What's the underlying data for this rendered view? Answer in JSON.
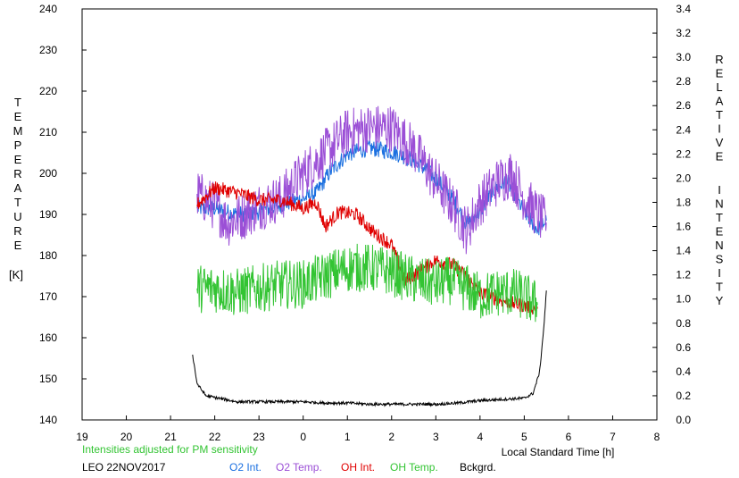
{
  "chart_data": {
    "type": "line",
    "left_axis": {
      "label_letters": [
        "T",
        "E",
        "M",
        "P",
        "E",
        "R",
        "A",
        "T",
        "U",
        "R",
        "E"
      ],
      "unit": "[K]",
      "ylim": [
        140,
        240
      ],
      "ticks": [
        140,
        150,
        160,
        170,
        180,
        190,
        200,
        210,
        220,
        230,
        240
      ],
      "tick_labels": [
        "140",
        "150",
        "160",
        "170",
        "180",
        "190",
        "200",
        "210",
        "220",
        "230",
        "240"
      ]
    },
    "right_axis": {
      "label_letters_1": [
        "R",
        "E",
        "L",
        "A",
        "T",
        "I",
        "V",
        "E"
      ],
      "label_letters_2": [
        "I",
        "N",
        "T",
        "E",
        "N",
        "S",
        "I",
        "T",
        "Y"
      ],
      "ylim": [
        0,
        3.4
      ],
      "ticks": [
        0,
        0.2,
        0.4,
        0.6,
        0.8,
        1.0,
        1.2,
        1.4,
        1.6,
        1.8,
        2.0,
        2.2,
        2.4,
        2.6,
        2.8,
        3.0,
        3.2,
        3.4
      ],
      "tick_labels": [
        "0.0",
        "0.2",
        "0.4",
        "0.6",
        "0.8",
        "1.0",
        "1.2",
        "1.4",
        "1.6",
        "1.8",
        "2.0",
        "2.2",
        "2.4",
        "2.6",
        "2.8",
        "3.0",
        "3.2",
        "3.4"
      ]
    },
    "x_axis": {
      "label": "Local Standard Time [h]",
      "xlim": [
        19,
        32
      ],
      "ticks": [
        19,
        20,
        21,
        22,
        23,
        24,
        25,
        26,
        27,
        28,
        29,
        30,
        31,
        32
      ],
      "tick_labels": [
        "19",
        "20",
        "21",
        "22",
        "23",
        "0",
        "1",
        "2",
        "3",
        "4",
        "5",
        "6",
        "7",
        "8"
      ]
    },
    "note": "Intensities adjusted for PM sensitivity",
    "station_date": "LEO 22NOV2017",
    "series": [
      {
        "name": "O2 Int.",
        "color": "#1a6fe0",
        "axis": "right",
        "noise": 0.07,
        "points": [
          [
            21.6,
            1.75
          ],
          [
            22.0,
            1.75
          ],
          [
            22.5,
            1.7
          ],
          [
            23.0,
            1.72
          ],
          [
            23.5,
            1.78
          ],
          [
            24.0,
            1.83
          ],
          [
            24.3,
            1.88
          ],
          [
            24.6,
            2.05
          ],
          [
            25.0,
            2.2
          ],
          [
            25.5,
            2.25
          ],
          [
            26.0,
            2.22
          ],
          [
            26.5,
            2.15
          ],
          [
            27.0,
            2.0
          ],
          [
            27.4,
            1.82
          ],
          [
            27.7,
            1.62
          ],
          [
            28.0,
            1.72
          ],
          [
            28.3,
            1.9
          ],
          [
            28.6,
            1.98
          ],
          [
            29.0,
            1.72
          ],
          [
            29.3,
            1.58
          ],
          [
            29.5,
            1.65
          ]
        ]
      },
      {
        "name": "O2 Temp.",
        "color": "#9b4fd6",
        "axis": "left",
        "noise": 6,
        "points": [
          [
            21.6,
            195
          ],
          [
            22.0,
            192
          ],
          [
            22.3,
            188
          ],
          [
            22.7,
            190
          ],
          [
            23.0,
            192
          ],
          [
            23.5,
            194
          ],
          [
            24.0,
            200
          ],
          [
            24.5,
            205
          ],
          [
            25.0,
            210
          ],
          [
            25.5,
            211
          ],
          [
            26.0,
            211
          ],
          [
            26.5,
            206
          ],
          [
            27.0,
            198
          ],
          [
            27.4,
            192
          ],
          [
            27.7,
            186
          ],
          [
            28.0,
            193
          ],
          [
            28.4,
            198
          ],
          [
            28.7,
            200
          ],
          [
            29.0,
            194
          ],
          [
            29.3,
            190
          ],
          [
            29.5,
            188
          ]
        ]
      },
      {
        "name": "OH Int.",
        "color": "#e00000",
        "axis": "right",
        "noise": 0.06,
        "points": [
          [
            21.6,
            1.78
          ],
          [
            22.0,
            1.92
          ],
          [
            22.5,
            1.88
          ],
          [
            23.0,
            1.82
          ],
          [
            23.5,
            1.82
          ],
          [
            24.0,
            1.75
          ],
          [
            24.3,
            1.8
          ],
          [
            24.5,
            1.6
          ],
          [
            24.8,
            1.72
          ],
          [
            25.2,
            1.7
          ],
          [
            25.6,
            1.55
          ],
          [
            26.0,
            1.45
          ],
          [
            26.3,
            1.15
          ],
          [
            26.6,
            1.22
          ],
          [
            27.0,
            1.32
          ],
          [
            27.4,
            1.28
          ],
          [
            27.7,
            1.18
          ],
          [
            28.0,
            1.05
          ],
          [
            28.4,
            1.0
          ],
          [
            28.8,
            0.96
          ],
          [
            29.3,
            0.92
          ]
        ]
      },
      {
        "name": "OH Temp.",
        "color": "#33c433",
        "axis": "left",
        "noise": 6,
        "points": [
          [
            21.6,
            172
          ],
          [
            22.0,
            172
          ],
          [
            22.5,
            171
          ],
          [
            23.0,
            172
          ],
          [
            23.5,
            173
          ],
          [
            24.0,
            173
          ],
          [
            24.5,
            175
          ],
          [
            25.0,
            177
          ],
          [
            25.5,
            177
          ],
          [
            26.0,
            176
          ],
          [
            26.5,
            174
          ],
          [
            27.0,
            173
          ],
          [
            27.3,
            174
          ],
          [
            27.7,
            172
          ],
          [
            28.0,
            170
          ],
          [
            28.4,
            171
          ],
          [
            28.8,
            171
          ],
          [
            29.0,
            170
          ],
          [
            29.3,
            168
          ]
        ]
      },
      {
        "name": "Bckgrd.",
        "color": "#000000",
        "axis": "right",
        "noise": 0.012,
        "points": [
          [
            21.5,
            0.54
          ],
          [
            21.6,
            0.3
          ],
          [
            21.8,
            0.2
          ],
          [
            22.5,
            0.15
          ],
          [
            23.0,
            0.15
          ],
          [
            23.5,
            0.15
          ],
          [
            24.0,
            0.15
          ],
          [
            24.5,
            0.14
          ],
          [
            25.0,
            0.14
          ],
          [
            25.5,
            0.13
          ],
          [
            26.0,
            0.13
          ],
          [
            26.5,
            0.13
          ],
          [
            27.0,
            0.13
          ],
          [
            27.5,
            0.14
          ],
          [
            28.0,
            0.16
          ],
          [
            28.5,
            0.17
          ],
          [
            29.0,
            0.18
          ],
          [
            29.2,
            0.22
          ],
          [
            29.35,
            0.4
          ],
          [
            29.45,
            0.8
          ],
          [
            29.5,
            1.07
          ]
        ]
      }
    ]
  }
}
